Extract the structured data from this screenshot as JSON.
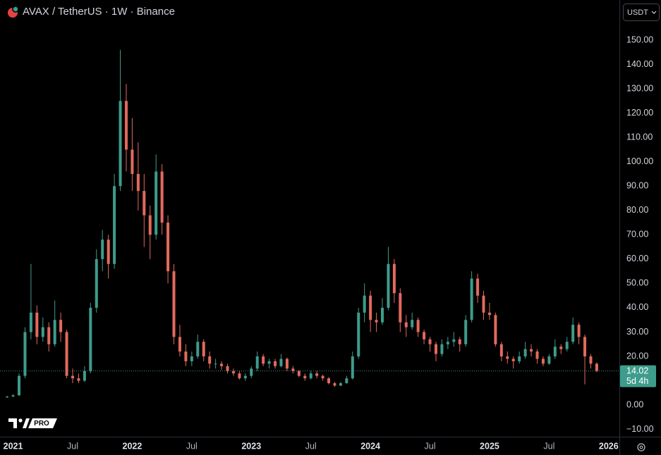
{
  "chart_data": {
    "type": "candlestick",
    "title": "AVAX / TetherUS · 1W · Binance",
    "currency": "USDT",
    "logo_text": "PRO",
    "grid": false,
    "up_color": "#3e9c8c",
    "down_color": "#e26a5e",
    "xlim": [
      2020.89,
      2026.09
    ],
    "xticks": [
      2021,
      {
        "value": 2021.5,
        "label": "Jul"
      },
      2022,
      {
        "value": 2022.5,
        "label": "Jul"
      },
      2023,
      {
        "value": 2023.5,
        "label": "Jul"
      },
      2024,
      {
        "value": 2024.5,
        "label": "Jul"
      },
      2025,
      {
        "value": 2025.5,
        "label": "Jul"
      },
      2026
    ],
    "ylim": [
      -13.0,
      166.5
    ],
    "yticks": [
      {
        "value": 150,
        "label": "150.00"
      },
      {
        "value": 140,
        "label": "140.00"
      },
      {
        "value": 130,
        "label": "130.00"
      },
      {
        "value": 120,
        "label": "120.00"
      },
      {
        "value": 110,
        "label": "110.00"
      },
      {
        "value": 100,
        "label": "100.00"
      },
      {
        "value": 90,
        "label": "90.00"
      },
      {
        "value": 80,
        "label": "80.00"
      },
      {
        "value": 70,
        "label": "70.00"
      },
      {
        "value": 60,
        "label": "60.00"
      },
      {
        "value": 50,
        "label": "50.00"
      },
      {
        "value": 40,
        "label": "40.00"
      },
      {
        "value": 30,
        "label": "30.00"
      },
      {
        "value": 20,
        "label": "20.00"
      },
      {
        "value": 0,
        "label": "0.00"
      },
      {
        "value": -10,
        "label": "−10.00"
      }
    ],
    "last_price": 14.02,
    "countdown": "5d 4h",
    "series": [
      {
        "name": "AVAX / TetherUS",
        "x": [
          2020.95,
          2021.0,
          2021.05,
          2021.1,
          2021.15,
          2021.2,
          2021.25,
          2021.3,
          2021.35,
          2021.4,
          2021.45,
          2021.5,
          2021.55,
          2021.6,
          2021.65,
          2021.7,
          2021.75,
          2021.8,
          2021.85,
          2021.9,
          2021.95,
          2022.0,
          2022.05,
          2022.1,
          2022.15,
          2022.2,
          2022.25,
          2022.3,
          2022.35,
          2022.4,
          2022.45,
          2022.5,
          2022.55,
          2022.6,
          2022.65,
          2022.7,
          2022.75,
          2022.8,
          2022.85,
          2022.9,
          2022.95,
          2023.0,
          2023.05,
          2023.1,
          2023.15,
          2023.2,
          2023.25,
          2023.3,
          2023.35,
          2023.4,
          2023.45,
          2023.5,
          2023.55,
          2023.6,
          2023.65,
          2023.7,
          2023.75,
          2023.8,
          2023.85,
          2023.9,
          2023.95,
          2024.0,
          2024.05,
          2024.1,
          2024.15,
          2024.2,
          2024.25,
          2024.3,
          2024.35,
          2024.4,
          2024.45,
          2024.5,
          2024.55,
          2024.6,
          2024.65,
          2024.7,
          2024.75,
          2024.8,
          2024.85,
          2024.9,
          2024.95,
          2025.0,
          2025.05,
          2025.1,
          2025.15,
          2025.2,
          2025.25,
          2025.3,
          2025.35,
          2025.4,
          2025.45,
          2025.5,
          2025.55,
          2025.6,
          2025.65,
          2025.7,
          2025.75,
          2025.8,
          2025.85,
          2025.9
        ],
        "values": [
          [
            3.2,
            3.8,
            2.9,
            3.5
          ],
          [
            3.5,
            4.5,
            3.3,
            4
          ],
          [
            4,
            13,
            3.8,
            12
          ],
          [
            12,
            32,
            11,
            30
          ],
          [
            30,
            58,
            27,
            38
          ],
          [
            38,
            41,
            25,
            28
          ],
          [
            28,
            36,
            26,
            32
          ],
          [
            32,
            34,
            22,
            25
          ],
          [
            25,
            43,
            24,
            35
          ],
          [
            35,
            38,
            26,
            30
          ],
          [
            30,
            31,
            11,
            12
          ],
          [
            12,
            15,
            9,
            11
          ],
          [
            11,
            13,
            9,
            10
          ],
          [
            10,
            16,
            9.5,
            14
          ],
          [
            14,
            42,
            13,
            40
          ],
          [
            40,
            64,
            38,
            60
          ],
          [
            60,
            72,
            55,
            68
          ],
          [
            68,
            70,
            52,
            58
          ],
          [
            58,
            95,
            56,
            90
          ],
          [
            90,
            146,
            88,
            125
          ],
          [
            125,
            132,
            96,
            105
          ],
          [
            105,
            118,
            88,
            95
          ],
          [
            95,
            108,
            80,
            88
          ],
          [
            88,
            95,
            65,
            78
          ],
          [
            78,
            82,
            60,
            70
          ],
          [
            70,
            103,
            68,
            96
          ],
          [
            96,
            99,
            70,
            75
          ],
          [
            75,
            78,
            50,
            55
          ],
          [
            55,
            58,
            25,
            28
          ],
          [
            28,
            33,
            20,
            22
          ],
          [
            22,
            25,
            16,
            18
          ],
          [
            18,
            22,
            16,
            20
          ],
          [
            20,
            29,
            19,
            26
          ],
          [
            26,
            27,
            18,
            20
          ],
          [
            20,
            22,
            15,
            17
          ],
          [
            17,
            19,
            15,
            17
          ],
          [
            17,
            18,
            14.5,
            16
          ],
          [
            16,
            17,
            13,
            14
          ],
          [
            14,
            15,
            12,
            13
          ],
          [
            13,
            14,
            10.5,
            11
          ],
          [
            11,
            13,
            10,
            12
          ],
          [
            12,
            16,
            11,
            15
          ],
          [
            15,
            22,
            14,
            20
          ],
          [
            20,
            21,
            16,
            17
          ],
          [
            17,
            19,
            15,
            18
          ],
          [
            18,
            19,
            15,
            16
          ],
          [
            16,
            21,
            15.5,
            19
          ],
          [
            19,
            19.5,
            14,
            15
          ],
          [
            15,
            16,
            13,
            14
          ],
          [
            14,
            14.5,
            11.5,
            12
          ],
          [
            12,
            13,
            10,
            11
          ],
          [
            11,
            14,
            10.5,
            13
          ],
          [
            13,
            14,
            11,
            12
          ],
          [
            12,
            12.5,
            10,
            11
          ],
          [
            11,
            11.5,
            8.5,
            9
          ],
          [
            9,
            9.5,
            7.5,
            8
          ],
          [
            8,
            9.5,
            7.8,
            9
          ],
          [
            9,
            12,
            8.8,
            11
          ],
          [
            11,
            22,
            10.5,
            20
          ],
          [
            20,
            40,
            19,
            38
          ],
          [
            38,
            50,
            34,
            45
          ],
          [
            45,
            47,
            30,
            35
          ],
          [
            35,
            38,
            30,
            34
          ],
          [
            34,
            44,
            33,
            40
          ],
          [
            40,
            65,
            39,
            58
          ],
          [
            58,
            60,
            42,
            46
          ],
          [
            46,
            48,
            30,
            34
          ],
          [
            34,
            37,
            28,
            32
          ],
          [
            32,
            38,
            31,
            35
          ],
          [
            35,
            36,
            28,
            30
          ],
          [
            30,
            31,
            25,
            27
          ],
          [
            27,
            28,
            22,
            25
          ],
          [
            25,
            26,
            18,
            21
          ],
          [
            21,
            27,
            20,
            25
          ],
          [
            25,
            28,
            23,
            26
          ],
          [
            26,
            30,
            24,
            27
          ],
          [
            27,
            28,
            22,
            25
          ],
          [
            25,
            37,
            24,
            35
          ],
          [
            35,
            55,
            34,
            52
          ],
          [
            52,
            54,
            42,
            45
          ],
          [
            45,
            47,
            35,
            38
          ],
          [
            38,
            42,
            35,
            37
          ],
          [
            37,
            38,
            24,
            25
          ],
          [
            25,
            26,
            18,
            20
          ],
          [
            20,
            22,
            17,
            19
          ],
          [
            19,
            20,
            15,
            18
          ],
          [
            18,
            22,
            17,
            20
          ],
          [
            20,
            26,
            19,
            23
          ],
          [
            23,
            25,
            20,
            22
          ],
          [
            22,
            23,
            17,
            19
          ],
          [
            19,
            20,
            16,
            17
          ],
          [
            17,
            21,
            16.5,
            20
          ],
          [
            20,
            27,
            19,
            24
          ],
          [
            24,
            25,
            21,
            23
          ],
          [
            23,
            28,
            22,
            26
          ],
          [
            26,
            36,
            25,
            33
          ],
          [
            33,
            34,
            25,
            28
          ],
          [
            28,
            29,
            8.5,
            20
          ],
          [
            20,
            21,
            15,
            17
          ],
          [
            17,
            17.5,
            13.5,
            14.02
          ]
        ]
      }
    ]
  }
}
